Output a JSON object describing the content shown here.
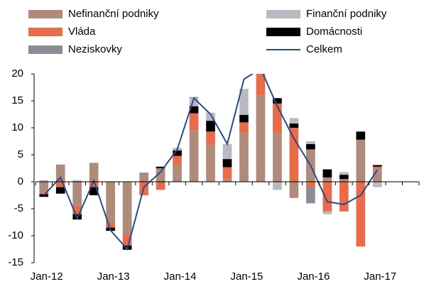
{
  "chart_data": {
    "type": "stacked_bar_line",
    "categories": [
      "Jan-12",
      null,
      null,
      null,
      "Jan-13",
      null,
      null,
      null,
      "Jan-14",
      null,
      null,
      null,
      "Jan-15",
      null,
      null,
      null,
      "Jan-16",
      null,
      null,
      null,
      "Jan-17",
      null,
      null
    ],
    "series": [
      {
        "name": "Nefinanční podniky",
        "color": "#b08b7b",
        "values": [
          -2.0,
          3.2,
          -4.5,
          3.5,
          -7.5,
          -9.8,
          1.7,
          2.5,
          3.0,
          9.5,
          6.8,
          0.5,
          9.0,
          16.0,
          9.0,
          -3.0,
          6.0,
          0.8,
          0.5,
          7.8,
          2.5,
          null,
          null
        ]
      },
      {
        "name": "Vláda",
        "color": "#e86c4a",
        "values": [
          -0.3,
          -1.0,
          -1.5,
          -1.0,
          -1.0,
          -2.0,
          -2.5,
          -1.5,
          1.8,
          3.2,
          2.5,
          2.2,
          2.0,
          4.5,
          5.5,
          10.0,
          -1.0,
          -5.5,
          -5.5,
          -12.0,
          0.3,
          null,
          null
        ]
      },
      {
        "name": "Domácnosti",
        "color": "#000000",
        "values": [
          -0.5,
          -1.2,
          -1.0,
          -1.5,
          -0.6,
          -0.8,
          0,
          0.3,
          1.0,
          1.3,
          2.0,
          1.5,
          1.4,
          0,
          1.0,
          0.8,
          1.0,
          1.5,
          0.8,
          1.5,
          0.3,
          null,
          null
        ]
      },
      {
        "name": "Finanční podniky",
        "color": "#b9b9c1",
        "values": [
          0.3,
          0,
          0.3,
          0,
          0,
          0,
          0,
          0,
          0.5,
          1.5,
          1.5,
          2.8,
          4.8,
          0,
          -1.5,
          1.0,
          0.5,
          -0.5,
          0.5,
          0,
          -1.0,
          null,
          null
        ]
      },
      {
        "name": "Neziskovky",
        "color": "#8c8c95",
        "values": [
          0,
          0,
          0,
          0,
          0,
          0,
          0,
          0,
          0,
          0.2,
          0,
          0,
          0,
          0,
          0,
          0,
          -3.0,
          0,
          0,
          0,
          0,
          null,
          null
        ]
      }
    ],
    "line": {
      "name": "Celkem",
      "color": "#2b4a8b",
      "values": [
        -2.5,
        0.8,
        -6.8,
        0.2,
        -9.0,
        -12.5,
        -1.0,
        1.8,
        6.0,
        15.5,
        12.5,
        7.0,
        19.0,
        21.0,
        14.0,
        8.0,
        3.0,
        -3.7,
        -4.2,
        -2.5,
        2.2,
        null,
        null
      ]
    },
    "ylim": [
      -15,
      20
    ],
    "yticks": [
      -15,
      -10,
      -5,
      0,
      5,
      10,
      15,
      20
    ],
    "grid": false
  }
}
